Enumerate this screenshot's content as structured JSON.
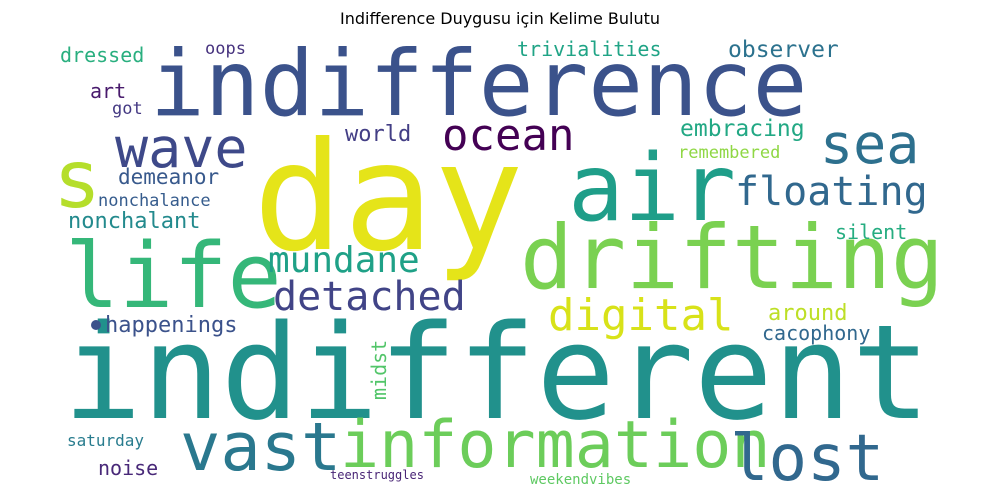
{
  "title": "Indifference Duygusu için Kelime Bulutu",
  "chart_data": {
    "type": "wordcloud",
    "title": "Indifference Duygusu için Kelime Bulutu",
    "words": [
      {
        "text": "indifferent",
        "weight": 1.0,
        "color": "#21918c"
      },
      {
        "text": "day",
        "weight": 0.98,
        "color": "#e5e419"
      },
      {
        "text": "indifference",
        "weight": 0.7,
        "color": "#3b528b"
      },
      {
        "text": "air",
        "weight": 0.7,
        "color": "#1f9e89"
      },
      {
        "text": "life",
        "weight": 0.68,
        "color": "#35b779"
      },
      {
        "text": "drifting",
        "weight": 0.66,
        "color": "#7ad151"
      },
      {
        "text": "s",
        "weight": 0.62,
        "color": "#b5de2b"
      },
      {
        "text": "vast",
        "weight": 0.48,
        "color": "#2a788e"
      },
      {
        "text": "information",
        "weight": 0.46,
        "color": "#6ccd5a"
      },
      {
        "text": "lost",
        "weight": 0.46,
        "color": "#31688e"
      },
      {
        "text": "wave",
        "weight": 0.4,
        "color": "#3e4989"
      },
      {
        "text": "sea",
        "weight": 0.4,
        "color": "#2d708e"
      },
      {
        "text": "ocean",
        "weight": 0.33,
        "color": "#440154"
      },
      {
        "text": "digital",
        "weight": 0.33,
        "color": "#d8e219"
      },
      {
        "text": "floating",
        "weight": 0.3,
        "color": "#31688e"
      },
      {
        "text": "detached",
        "weight": 0.3,
        "color": "#414487"
      },
      {
        "text": "mundane",
        "weight": 0.27,
        "color": "#1fa187"
      },
      {
        "text": "embracing",
        "weight": 0.18,
        "color": "#22a884"
      },
      {
        "text": "observer",
        "weight": 0.18,
        "color": "#2c728e"
      },
      {
        "text": "world",
        "weight": 0.17,
        "color": "#433e85"
      },
      {
        "text": "happenings",
        "weight": 0.17,
        "color": "#3b528b"
      },
      {
        "text": "around",
        "weight": 0.17,
        "color": "#bddf26"
      },
      {
        "text": "nonchalant",
        "weight": 0.17,
        "color": "#238a8d"
      },
      {
        "text": "demeanor",
        "weight": 0.16,
        "color": "#38598c"
      },
      {
        "text": "silent",
        "weight": 0.15,
        "color": "#26ad81"
      },
      {
        "text": "trivialities",
        "weight": 0.15,
        "color": "#20a486"
      },
      {
        "text": "dressed",
        "weight": 0.15,
        "color": "#29af7f"
      },
      {
        "text": "art",
        "weight": 0.15,
        "color": "#481a6c"
      },
      {
        "text": "cacophony",
        "weight": 0.15,
        "color": "#31688e"
      },
      {
        "text": "noise",
        "weight": 0.15,
        "color": "#482878"
      },
      {
        "text": "midst",
        "weight": 0.15,
        "color": "#52c569"
      },
      {
        "text": "nonchalance",
        "weight": 0.13,
        "color": "#365c8d"
      },
      {
        "text": "oops",
        "weight": 0.13,
        "color": "#46327e"
      },
      {
        "text": "got",
        "weight": 0.13,
        "color": "#443983"
      },
      {
        "text": "remembered",
        "weight": 0.13,
        "color": "#8fd744"
      },
      {
        "text": "saturday",
        "weight": 0.12,
        "color": "#287c8e"
      },
      {
        "text": "weekendvibes",
        "weight": 0.11,
        "color": "#5ec962"
      },
      {
        "text": "teenstruggles",
        "weight": 0.09,
        "color": "#482475"
      },
      {
        "text": "",
        "weight": 0.05,
        "color": "#3b528b"
      }
    ]
  }
}
